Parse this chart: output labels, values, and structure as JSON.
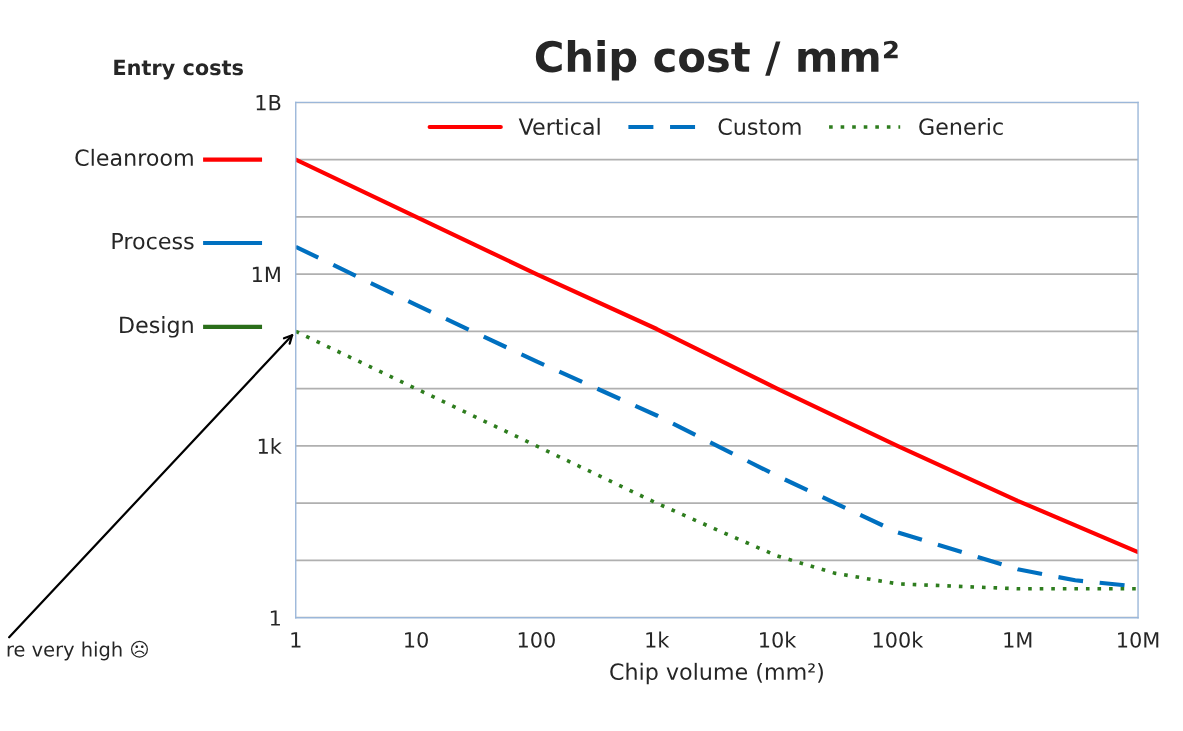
{
  "chart_data": {
    "type": "line",
    "title": "Chip cost / mm²",
    "xlabel": "Chip volume (mm²)",
    "log": "xy",
    "grid": "y",
    "legend": "top",
    "marker": "none",
    "xlim": [
      1,
      10000000
    ],
    "ylim": [
      1,
      1000000000
    ],
    "xticks": [
      1,
      10,
      100,
      {
        "value": 1000,
        "label": "1k"
      },
      {
        "value": 10000,
        "label": "10k"
      },
      {
        "value": 100000,
        "label": "100k"
      },
      {
        "value": 1000000,
        "label": "1M"
      },
      {
        "value": 10000000,
        "label": "10M"
      }
    ],
    "yticks": [
      1,
      {
        "value": 10,
        "label": null
      },
      {
        "value": 100,
        "label": null
      },
      {
        "value": 1000,
        "label": "1k"
      },
      {
        "value": 10000,
        "label": null
      },
      {
        "value": 100000,
        "label": null
      },
      {
        "value": 1000000,
        "label": "1M"
      },
      {
        "value": 10000000,
        "label": null
      },
      {
        "value": 100000000,
        "label": null
      },
      {
        "value": 1000000000,
        "label": "1B"
      }
    ],
    "series": [
      {
        "name": "Vertical",
        "color": "#ff0000",
        "line_style": "solid",
        "x": [
          1,
          10,
          100,
          1000,
          10000,
          100000,
          1000000,
          10000000
        ],
        "values": [
          100000000,
          10000000,
          1000000,
          110000,
          10000,
          1000,
          110,
          14
        ]
      },
      {
        "name": "Custom",
        "color": "#0070c0",
        "line_style": "dashed",
        "x": [
          1,
          10,
          100,
          1000,
          10000,
          100000,
          1000000,
          3000000,
          10000000
        ],
        "values": [
          3000000,
          290000,
          30000,
          3400,
          300,
          31,
          7,
          4.5,
          3.5
        ]
      },
      {
        "name": "Generic",
        "color": "#2e7d1e",
        "line_style": "dotted",
        "x": [
          1,
          10,
          100,
          1000,
          3000,
          10000,
          30000,
          100000,
          1000000,
          10000000
        ],
        "values": [
          100000,
          10000,
          1000,
          100,
          36,
          12,
          6,
          3.9,
          3.2,
          3.2
        ]
      }
    ],
    "ref_lines": [
      {
        "axis": "y",
        "value": 100000000,
        "label": "Cleanroom",
        "color": "#ff0000"
      },
      {
        "axis": "y",
        "value": 3500000,
        "label": "Process",
        "color": "#0070c0"
      },
      {
        "axis": "y",
        "value": 120000,
        "label": "Design",
        "color": "#2a6e1a"
      }
    ],
    "annotations": [
      "Entry costs",
      {
        "text": "re very high ☹",
        "x": 1,
        "y": 100000
      }
    ]
  }
}
